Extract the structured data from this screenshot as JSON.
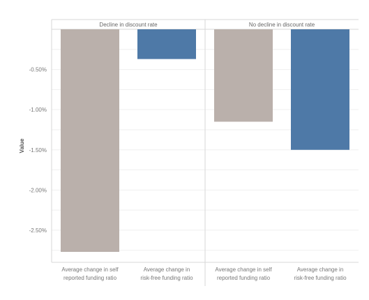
{
  "chart_data": {
    "type": "bar",
    "ylabel": "Value",
    "y_ticks": [
      "-0.50%",
      "-1.00%",
      "-1.50%",
      "-2.00%",
      "-2.50%"
    ],
    "y_tick_values": [
      -0.5,
      -1.0,
      -1.5,
      -2.0,
      -2.5
    ],
    "ylim": [
      -2.9,
      0
    ],
    "grid": true,
    "panels": [
      {
        "title": "Decline in discount rate",
        "categories": [
          [
            "Average change in self",
            "reported funding ratio"
          ],
          [
            "Average change in",
            "risk-free funding ratio"
          ]
        ],
        "values": [
          -2.77,
          -0.37
        ]
      },
      {
        "title": "No decline in discount rate",
        "categories": [
          [
            "Average change in self",
            "reported funding ratio"
          ],
          [
            "Average change in",
            "risk-free funding ratio"
          ]
        ],
        "values": [
          -1.15,
          -1.5
        ]
      }
    ],
    "bar_colors": [
      "#bab0ab",
      "#4e79a7"
    ]
  },
  "colors": {
    "axis_text": "#777777",
    "panel_title": "#666666",
    "grid": "#efefef",
    "divider": "#d7d7d7"
  }
}
